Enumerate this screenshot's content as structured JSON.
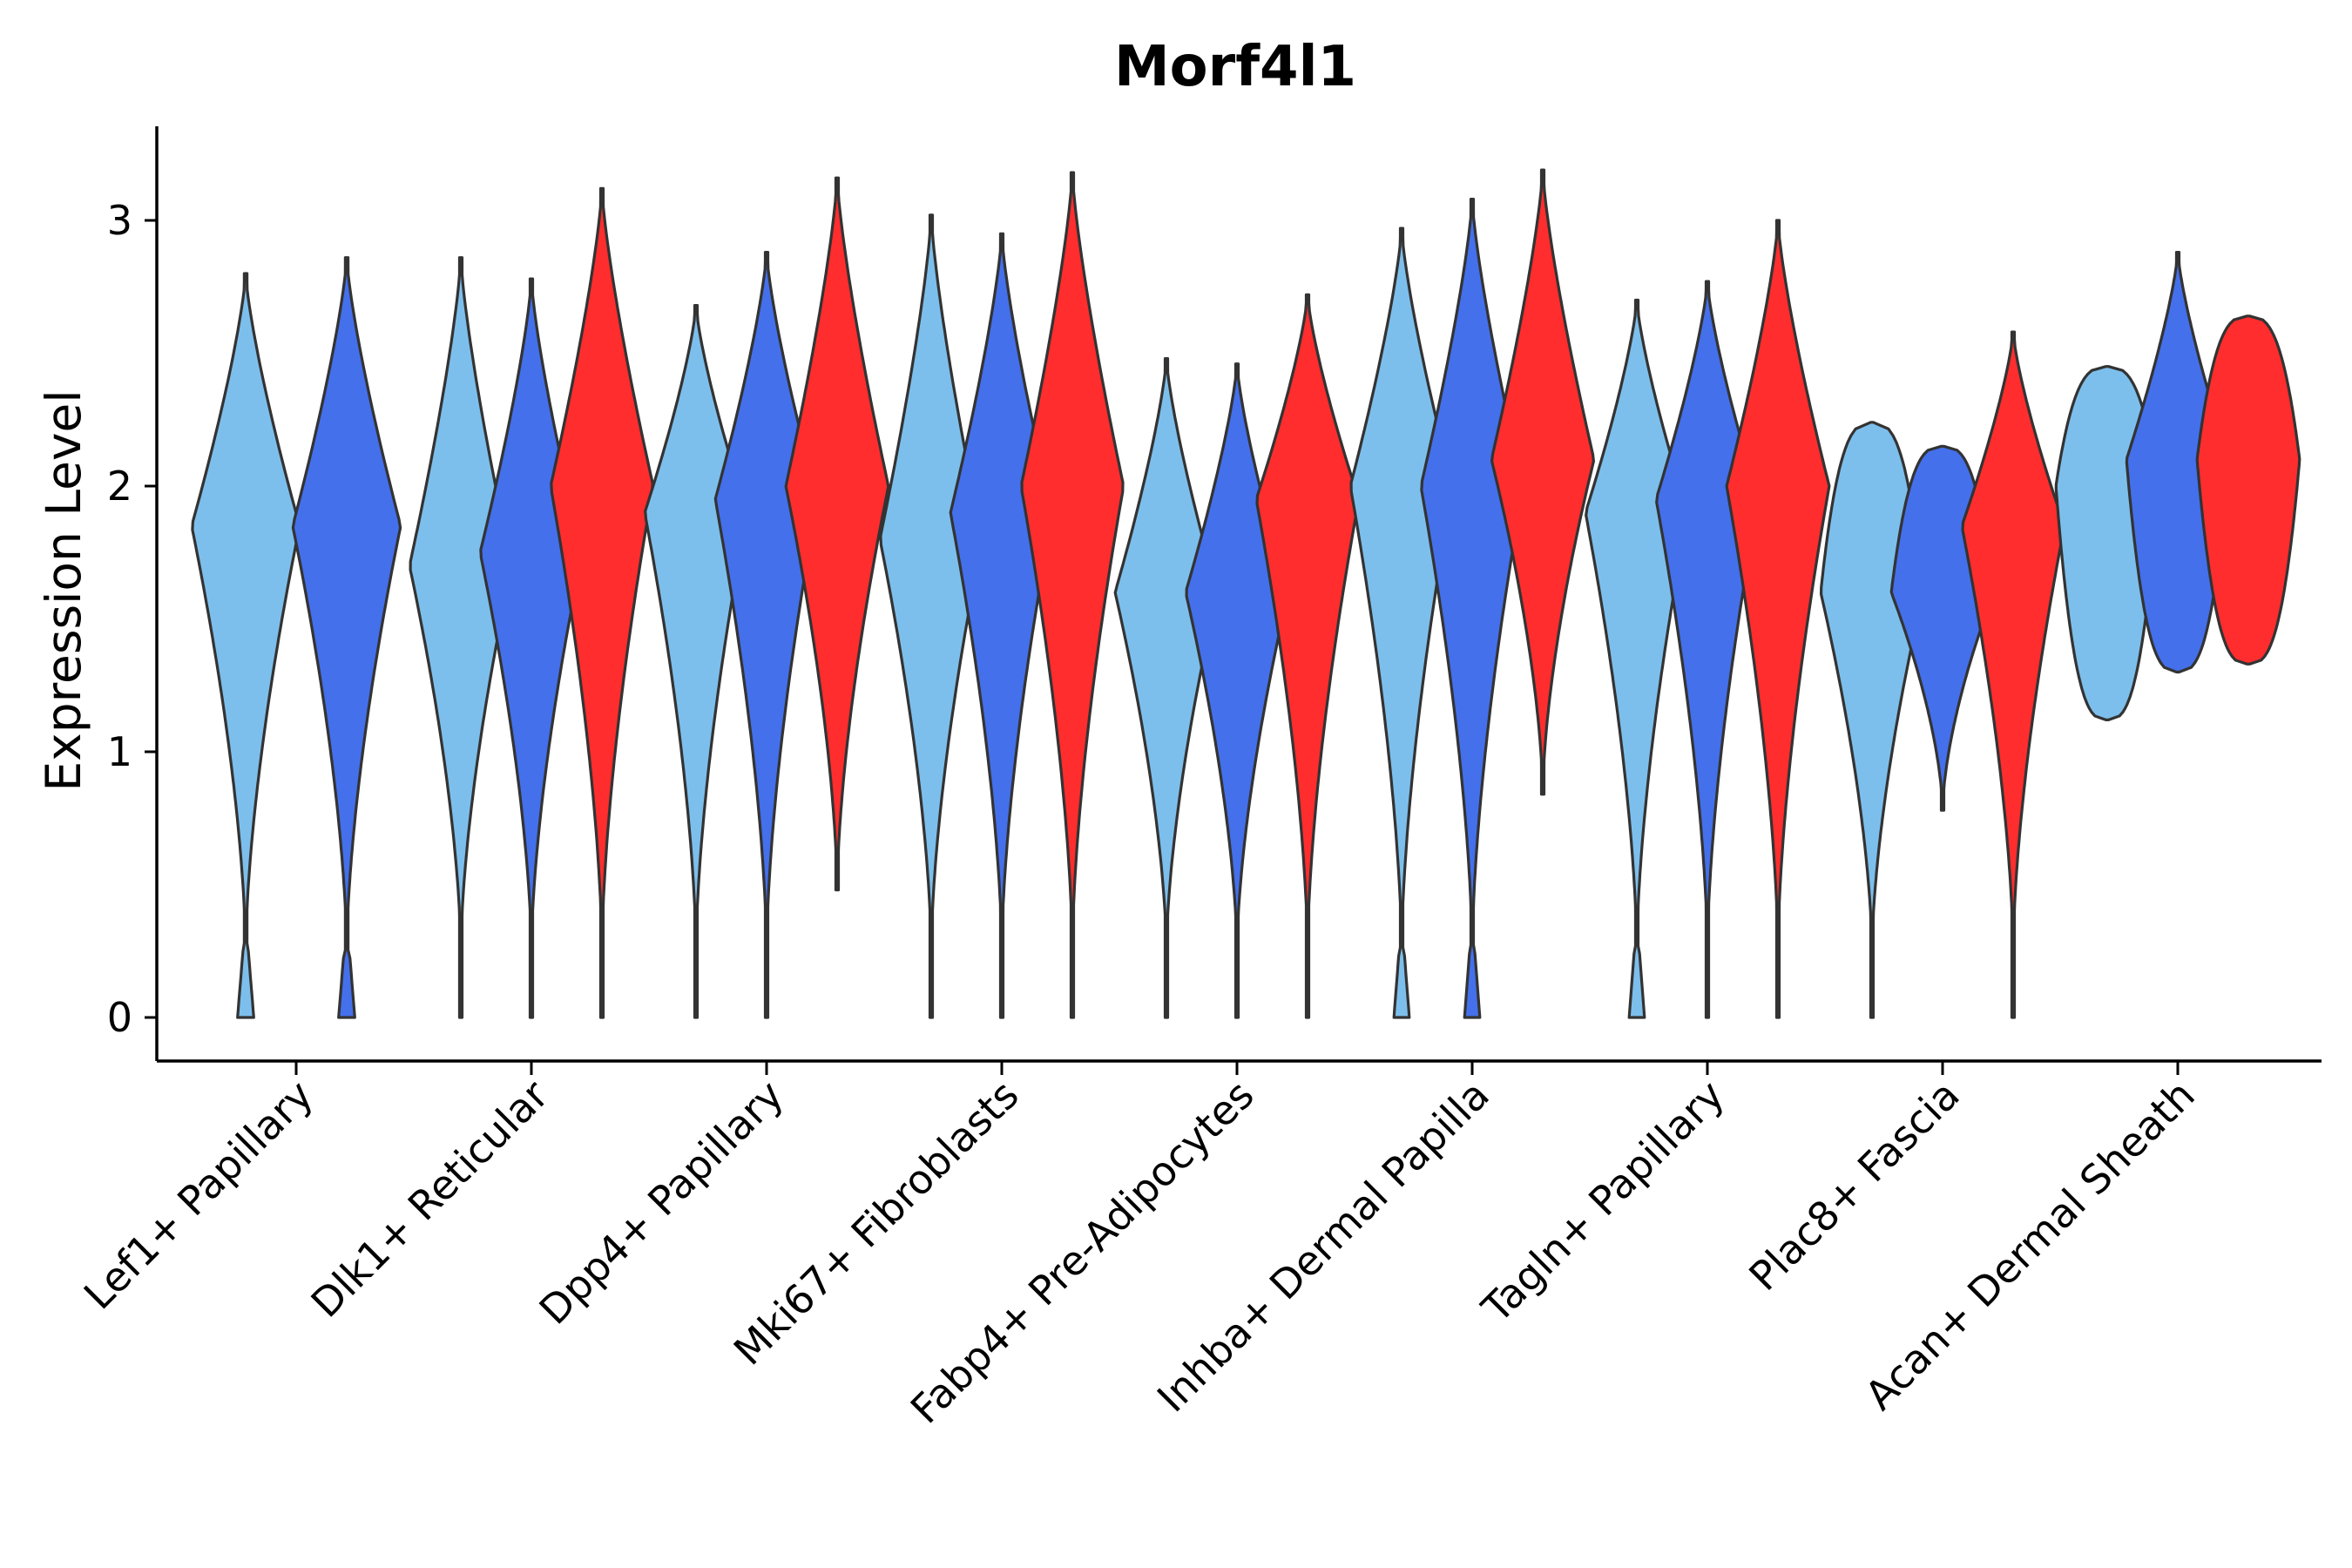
{
  "chart_data": {
    "type": "violin",
    "title": "Morf4l1",
    "xlabel": "",
    "ylabel": "Expression Level",
    "ylim": [
      -0.16,
      3.35
    ],
    "yticks": [
      0,
      1,
      2,
      3
    ],
    "grid": false,
    "legend": "none",
    "group_colors": [
      "#7dbfec",
      "#4470ec",
      "#ff2d2d"
    ],
    "categories": [
      "Lef1+ Papillary",
      "Dlk1+ Reticular",
      "Dpp4+ Papillary",
      "Mki67+ Fibroblasts",
      "Fabp4+ Pre-Adipocytes",
      "Inhba+ Dermal Papilla",
      "Tagln+ Papillary",
      "Plac8+ Fascia",
      "Acan+ Dermal Sheath"
    ],
    "violins": [
      {
        "category": 0,
        "group": 0,
        "min": 0.0,
        "max": 2.8,
        "mode": 1.85,
        "maxwidth": 1.0,
        "zero": true
      },
      {
        "category": 0,
        "group": 1,
        "min": 0.0,
        "max": 2.86,
        "mode": 1.85,
        "maxwidth": 1.0,
        "zero": true
      },
      {
        "category": 1,
        "group": 0,
        "min": 0.0,
        "max": 2.86,
        "mode": 1.7,
        "maxwidth": 0.95,
        "zero": false
      },
      {
        "category": 1,
        "group": 1,
        "min": 0.0,
        "max": 2.78,
        "mode": 1.75,
        "maxwidth": 0.95,
        "zero": false
      },
      {
        "category": 1,
        "group": 2,
        "min": 0.0,
        "max": 3.12,
        "mode": 2.0,
        "maxwidth": 0.95,
        "zero": false
      },
      {
        "category": 2,
        "group": 0,
        "min": 0.0,
        "max": 2.68,
        "mode": 1.9,
        "maxwidth": 0.95,
        "zero": false
      },
      {
        "category": 2,
        "group": 1,
        "min": 0.0,
        "max": 2.88,
        "mode": 1.95,
        "maxwidth": 0.95,
        "zero": false
      },
      {
        "category": 2,
        "group": 2,
        "min": 0.48,
        "max": 3.16,
        "mode": 2.0,
        "maxwidth": 0.95,
        "zero": false
      },
      {
        "category": 3,
        "group": 0,
        "min": 0.0,
        "max": 3.02,
        "mode": 1.8,
        "maxwidth": 0.95,
        "zero": false
      },
      {
        "category": 3,
        "group": 1,
        "min": 0.0,
        "max": 2.95,
        "mode": 1.9,
        "maxwidth": 0.95,
        "zero": false
      },
      {
        "category": 3,
        "group": 2,
        "min": 0.0,
        "max": 3.18,
        "mode": 2.0,
        "maxwidth": 0.95,
        "zero": false
      },
      {
        "category": 4,
        "group": 0,
        "min": 0.0,
        "max": 2.48,
        "mode": 1.6,
        "maxwidth": 0.95,
        "zero": false
      },
      {
        "category": 4,
        "group": 1,
        "min": 0.0,
        "max": 2.46,
        "mode": 1.6,
        "maxwidth": 0.95,
        "zero": false
      },
      {
        "category": 4,
        "group": 2,
        "min": 0.0,
        "max": 2.72,
        "mode": 1.95,
        "maxwidth": 0.95,
        "zero": false
      },
      {
        "category": 5,
        "group": 0,
        "min": 0.0,
        "max": 2.97,
        "mode": 2.0,
        "maxwidth": 0.95,
        "zero": true
      },
      {
        "category": 5,
        "group": 1,
        "min": 0.0,
        "max": 3.08,
        "mode": 2.0,
        "maxwidth": 0.95,
        "zero": true
      },
      {
        "category": 5,
        "group": 2,
        "min": 0.84,
        "max": 3.19,
        "mode": 2.1,
        "maxwidth": 0.95,
        "zero": false
      },
      {
        "category": 6,
        "group": 0,
        "min": 0.0,
        "max": 2.7,
        "mode": 1.9,
        "maxwidth": 0.95,
        "zero": true
      },
      {
        "category": 6,
        "group": 1,
        "min": 0.0,
        "max": 2.77,
        "mode": 1.95,
        "maxwidth": 0.95,
        "zero": false
      },
      {
        "category": 6,
        "group": 2,
        "min": 0.0,
        "max": 3.0,
        "mode": 2.0,
        "maxwidth": 0.95,
        "zero": false
      },
      {
        "category": 7,
        "group": 0,
        "min": 0.0,
        "max": 2.24,
        "mode": 1.6,
        "maxwidth": 0.95,
        "zero": false,
        "flat_top": true
      },
      {
        "category": 7,
        "group": 1,
        "min": 0.78,
        "max": 2.15,
        "mode": 1.6,
        "maxwidth": 0.95,
        "zero": false,
        "flat_top": true
      },
      {
        "category": 7,
        "group": 2,
        "min": 0.0,
        "max": 2.58,
        "mode": 1.85,
        "maxwidth": 0.95,
        "zero": false
      },
      {
        "category": 8,
        "group": 0,
        "min": 1.12,
        "max": 2.45,
        "mode": 2.0,
        "maxwidth": 0.95,
        "zero": false,
        "flat_top": true,
        "flat_bottom": true
      },
      {
        "category": 8,
        "group": 1,
        "min": 1.3,
        "max": 2.88,
        "mode": 2.1,
        "maxwidth": 0.95,
        "zero": false,
        "flat_bottom": true
      },
      {
        "category": 8,
        "group": 2,
        "min": 1.33,
        "max": 2.64,
        "mode": 2.1,
        "maxwidth": 0.95,
        "zero": false,
        "flat_top": true,
        "flat_bottom": true
      }
    ]
  }
}
